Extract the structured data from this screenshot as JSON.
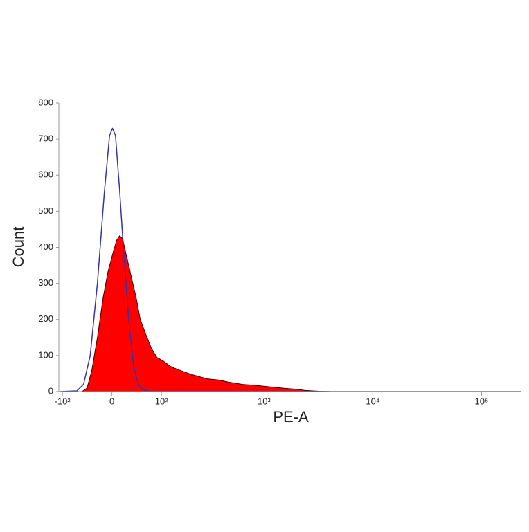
{
  "chart_data": {
    "type": "histogram",
    "xlabel": "PE-A",
    "ylabel": "Count",
    "xscale": "biexponential",
    "xlim": [
      -110,
      229000
    ],
    "ylim": [
      0,
      800
    ],
    "xticks": [
      {
        "value": -100,
        "label": "-10²"
      },
      0,
      {
        "value": 100,
        "label": "10²"
      },
      {
        "value": 1000,
        "label": "10³"
      },
      {
        "value": 10000,
        "label": "10⁴"
      },
      {
        "value": 100000,
        "label": "10⁵"
      }
    ],
    "yticks": [
      0,
      100,
      200,
      300,
      400,
      500,
      600,
      700,
      800
    ],
    "series": [
      {
        "color": "#ff0000",
        "filled": true,
        "x": [
          -108,
          -54,
          -44,
          -35,
          -25,
          -15,
          -7,
          1,
          8,
          13,
          18,
          23,
          29,
          35,
          43,
          51,
          62,
          75,
          88,
          105,
          126,
          149,
          175,
          205,
          258,
          301,
          377,
          471,
          634,
          851,
          1142,
          1533,
          2056,
          2377,
          3187,
          4272,
          229000
        ],
        "values": [
          0,
          0,
          10,
          60,
          150,
          260,
          330,
          380,
          420,
          432,
          425,
          390,
          350,
          310,
          260,
          200,
          160,
          120,
          95,
          85,
          70,
          62,
          55,
          48,
          40,
          35,
          32,
          26,
          20,
          17,
          13,
          9,
          6,
          3,
          1,
          0,
          0
        ]
      },
      {
        "color": "#3333aa",
        "filled": false,
        "x": [
          -108,
          -65,
          -51,
          -38,
          -25,
          -13,
          -4,
          1,
          6,
          13,
          20,
          29,
          38,
          48,
          62,
          78,
          229000
        ],
        "values": [
          0,
          2,
          20,
          100,
          300,
          550,
          710,
          730,
          710,
          560,
          390,
          200,
          70,
          15,
          2,
          0,
          0
        ]
      }
    ]
  }
}
